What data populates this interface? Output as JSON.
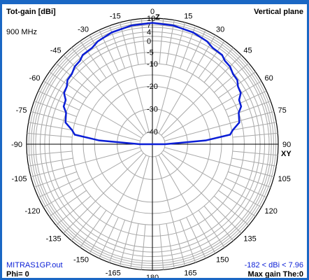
{
  "header": {
    "title": "Tot-gain [dBi]",
    "plane": "Vertical plane",
    "frequency": "900 MHz"
  },
  "footer": {
    "filename": "MITRAS1GP.out",
    "phi": "Phi= 0",
    "range": "-182 < dBi < 7.96",
    "max_gain": "Max gain The:0"
  },
  "polar_axis": {
    "zenith_label": "Z",
    "horizon_label": "XY"
  },
  "colors": {
    "frame": "#1a67c4",
    "pattern": "#0a1ed6",
    "grid": "#a9a9a9"
  },
  "chart_data": {
    "type": "polar",
    "title": "Tot-gain [dBi]",
    "subtitle": "Vertical plane",
    "angle_labels": [
      "0",
      "15",
      "30",
      "45",
      "60",
      "75",
      "90",
      "105",
      "120",
      "135",
      "150",
      "165",
      "180",
      "-165",
      "-150",
      "-135",
      "-120",
      "-105",
      "-90",
      "-75",
      "-60",
      "-45",
      "-30",
      "-15"
    ],
    "radial_ticks": [
      "10",
      "7",
      "4",
      "0",
      "-5",
      "-10",
      "-20",
      "-30",
      "-40"
    ],
    "series": [
      {
        "points": [
          {
            "angle": 0,
            "gain": 7.96
          },
          {
            "angle": 10,
            "gain": 7.6
          },
          {
            "angle": 20,
            "gain": 6.9
          },
          {
            "angle": 28,
            "gain": 5.8
          },
          {
            "angle": 32,
            "gain": 4.6
          },
          {
            "angle": 38,
            "gain": 4.4
          },
          {
            "angle": 41,
            "gain": 3.2
          },
          {
            "angle": 45,
            "gain": 2.9
          },
          {
            "angle": 49,
            "gain": 1.6
          },
          {
            "angle": 53,
            "gain": 1.4
          },
          {
            "angle": 56,
            "gain": 0.0
          },
          {
            "angle": 60,
            "gain": -0.5
          },
          {
            "angle": 63,
            "gain": -2.6
          },
          {
            "angle": 67,
            "gain": -3.0
          },
          {
            "angle": 70,
            "gain": -5.0
          },
          {
            "angle": 76,
            "gain": -6.0
          },
          {
            "angle": 80,
            "gain": -9.5
          },
          {
            "angle": 83,
            "gain": -11.0
          },
          {
            "angle": 86,
            "gain": -22.0
          },
          {
            "angle": 90,
            "gain": -40.0
          },
          {
            "angle": -90,
            "gain": -40.0
          },
          {
            "angle": -86,
            "gain": -22.0
          },
          {
            "angle": -83,
            "gain": -11.0
          },
          {
            "angle": -80,
            "gain": -9.5
          },
          {
            "angle": -76,
            "gain": -6.0
          },
          {
            "angle": -70,
            "gain": -5.0
          },
          {
            "angle": -67,
            "gain": -3.0
          },
          {
            "angle": -63,
            "gain": -2.6
          },
          {
            "angle": -60,
            "gain": -0.5
          },
          {
            "angle": -56,
            "gain": 0.0
          },
          {
            "angle": -53,
            "gain": 1.4
          },
          {
            "angle": -49,
            "gain": 1.6
          },
          {
            "angle": -45,
            "gain": 2.9
          },
          {
            "angle": -41,
            "gain": 3.2
          },
          {
            "angle": -38,
            "gain": 4.4
          },
          {
            "angle": -32,
            "gain": 4.6
          },
          {
            "angle": -28,
            "gain": 5.8
          },
          {
            "angle": -20,
            "gain": 6.9
          },
          {
            "angle": -10,
            "gain": 7.6
          },
          {
            "angle": 0,
            "gain": 7.96
          }
        ]
      }
    ],
    "r_range_dbi": [
      -40,
      10
    ],
    "angle_unit": "degrees",
    "grid": true
  }
}
